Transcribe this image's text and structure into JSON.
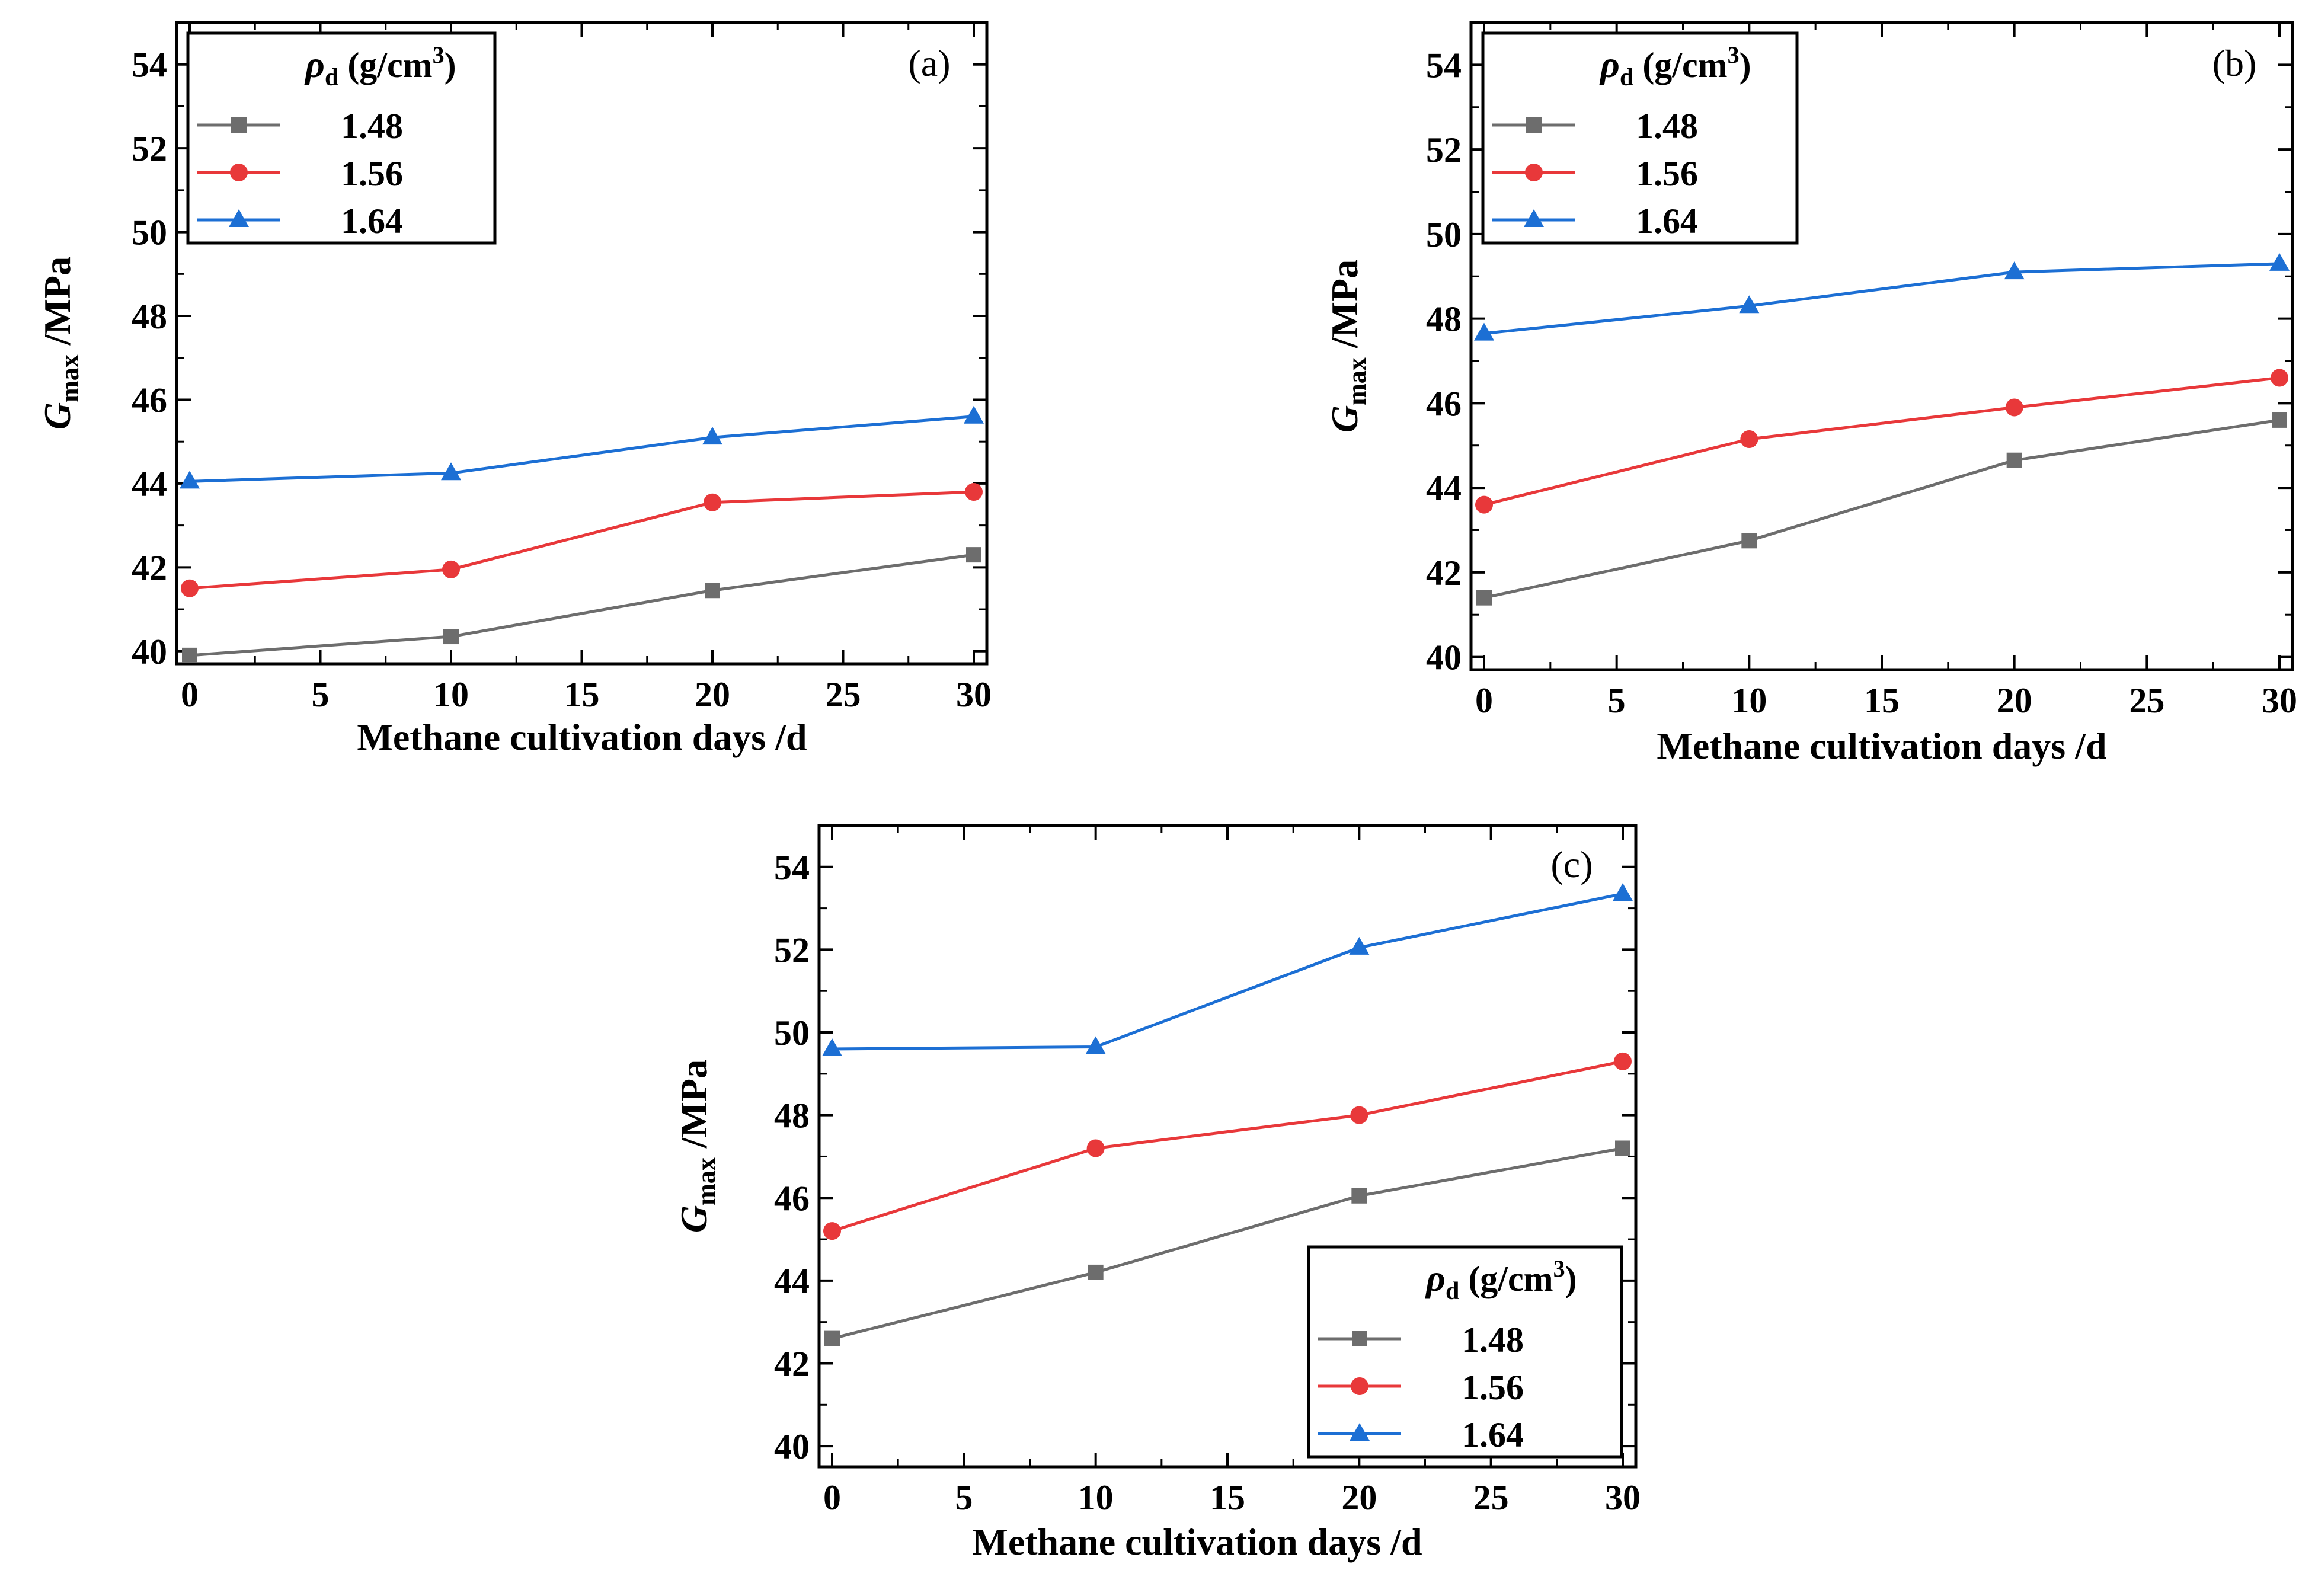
{
  "chart_data": [
    {
      "panel": "(a)",
      "type": "line",
      "xlabel": "Methane cultivation days /d",
      "ylabel_main": "G",
      "ylabel_sub": "max",
      "ylabel_unit": " /MPa",
      "xlim": [
        0,
        30
      ],
      "ylim": [
        39.7,
        55
      ],
      "xticks": [
        0,
        5,
        10,
        15,
        20,
        25,
        30
      ],
      "yticks": [
        40,
        42,
        44,
        46,
        48,
        50,
        52,
        54
      ],
      "x": [
        0,
        10,
        20,
        30
      ],
      "legend_title_main": "ρ",
      "legend_title_sub": "d",
      "legend_title_unit": " (g/cm",
      "legend_title_sup": "3",
      "legend_title_close": ")",
      "legend_position": "top-left",
      "series": [
        {
          "name": "1.48",
          "marker": "square",
          "values": [
            39.9,
            40.35,
            41.45,
            42.3
          ]
        },
        {
          "name": "1.56",
          "marker": "circle",
          "values": [
            41.5,
            41.95,
            43.55,
            43.8
          ]
        },
        {
          "name": "1.64",
          "marker": "triangle",
          "values": [
            44.05,
            44.25,
            45.1,
            45.6
          ]
        }
      ]
    },
    {
      "panel": "(b)",
      "type": "line",
      "xlabel": "Methane cultivation days /d",
      "ylabel_main": "G",
      "ylabel_sub": "max",
      "ylabel_unit": " /MPa",
      "xlim": [
        0,
        30
      ],
      "ylim": [
        39.7,
        55
      ],
      "xticks": [
        0,
        5,
        10,
        15,
        20,
        25,
        30
      ],
      "yticks": [
        40,
        42,
        44,
        46,
        48,
        50,
        52,
        54
      ],
      "x": [
        0,
        10,
        20,
        30
      ],
      "legend_title_main": "ρ",
      "legend_title_sub": "d",
      "legend_title_unit": " (g/cm",
      "legend_title_sup": "3",
      "legend_title_close": ")",
      "legend_position": "top-left",
      "series": [
        {
          "name": "1.48",
          "marker": "square",
          "values": [
            41.4,
            42.75,
            44.65,
            45.6
          ]
        },
        {
          "name": "1.56",
          "marker": "circle",
          "values": [
            43.6,
            45.15,
            45.9,
            46.6
          ]
        },
        {
          "name": "1.64",
          "marker": "triangle",
          "values": [
            47.65,
            48.3,
            49.1,
            49.3
          ]
        }
      ]
    },
    {
      "panel": "(c)",
      "type": "line",
      "xlabel": "Methane cultivation days /d",
      "ylabel_main": "G",
      "ylabel_sub": "max",
      "ylabel_unit": " /MPa",
      "xlim": [
        0,
        30
      ],
      "ylim": [
        39.5,
        55
      ],
      "xticks": [
        0,
        5,
        10,
        15,
        20,
        25,
        30
      ],
      "yticks": [
        40,
        42,
        44,
        46,
        48,
        50,
        52,
        54
      ],
      "x": [
        0,
        10,
        20,
        30
      ],
      "legend_title_main": "ρ",
      "legend_title_sub": "d",
      "legend_title_unit": " (g/cm",
      "legend_title_sup": "3",
      "legend_title_close": ")",
      "legend_position": "bottom-right",
      "series": [
        {
          "name": "1.48",
          "marker": "square",
          "values": [
            42.6,
            44.2,
            46.05,
            47.2
          ]
        },
        {
          "name": "1.56",
          "marker": "circle",
          "values": [
            45.2,
            47.2,
            48.0,
            49.3
          ]
        },
        {
          "name": "1.64",
          "marker": "triangle",
          "values": [
            49.6,
            49.65,
            52.05,
            53.35
          ]
        }
      ]
    }
  ],
  "colors": {
    "1.48": "#6d6d6d",
    "1.56": "#e8383a",
    "1.64": "#1c6fd4",
    "axis": "#000000"
  }
}
